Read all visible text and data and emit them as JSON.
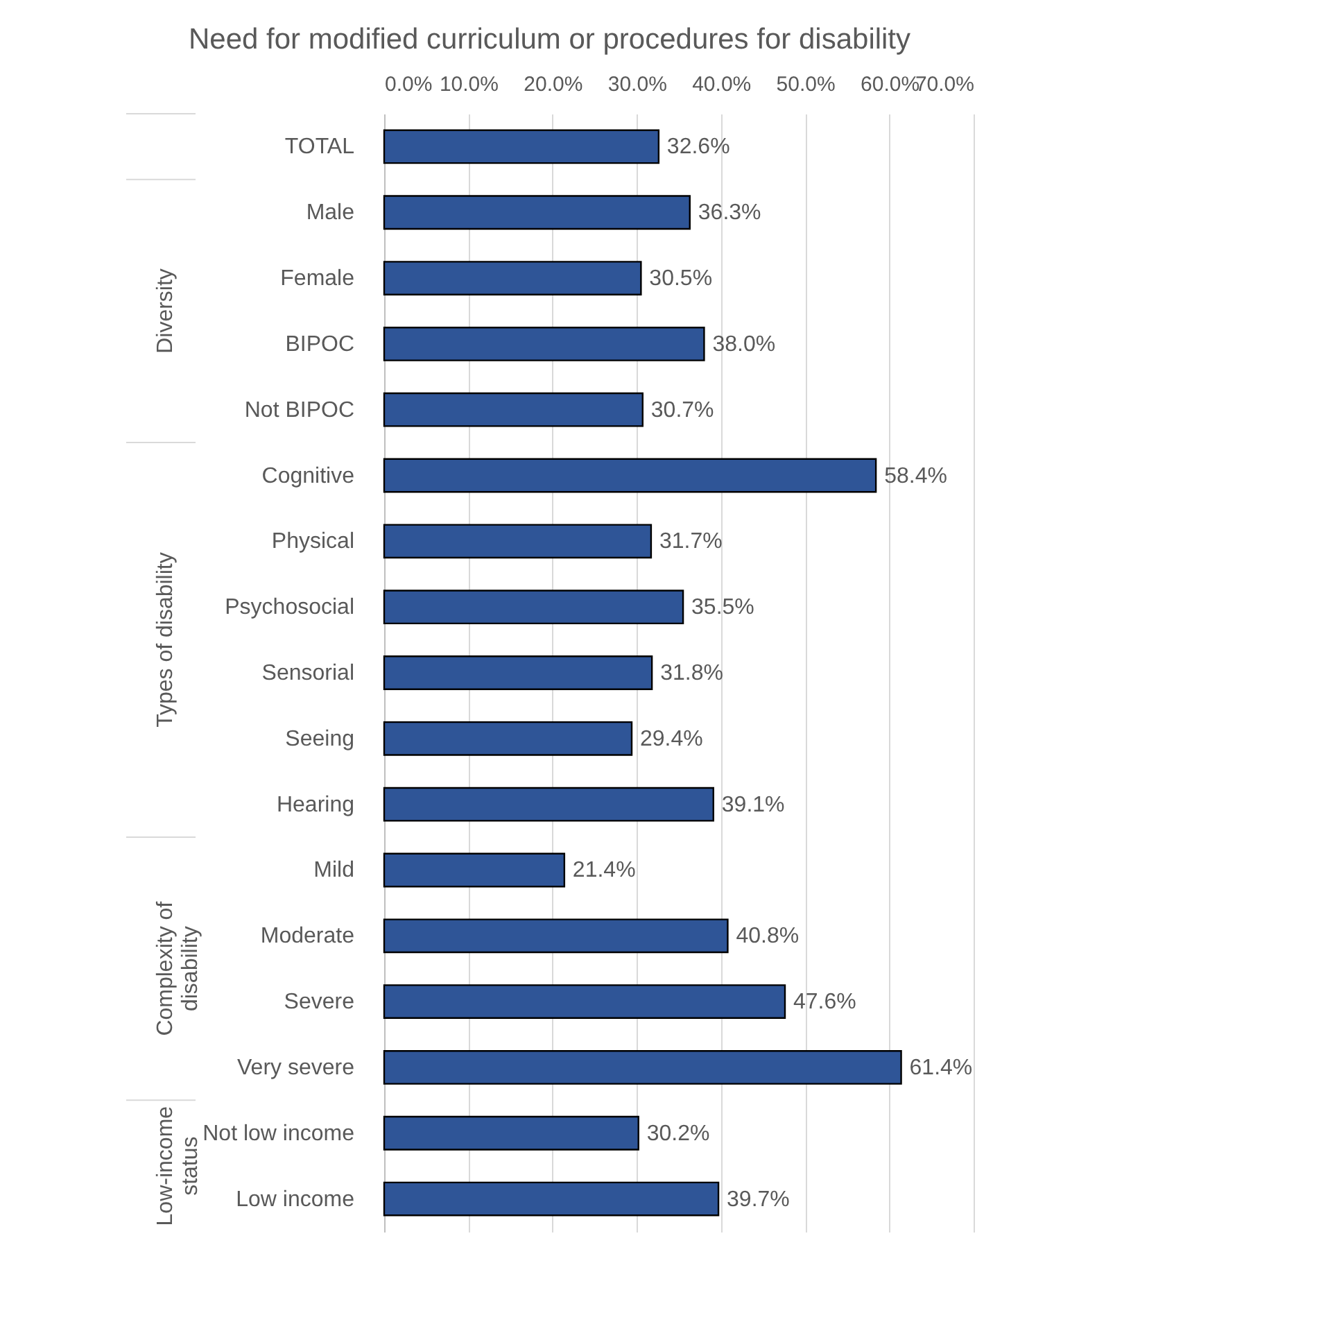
{
  "chart_data": {
    "type": "bar",
    "orientation": "horizontal",
    "title": "Need for modified curriculum or procedures for disability",
    "categories": [
      "TOTAL",
      "Male",
      "Female",
      "BIPOC",
      "Not BIPOC",
      "Cognitive",
      "Physical",
      "Psychosocial",
      "Sensorial",
      "Seeing",
      "Hearing",
      "Mild",
      "Moderate",
      "Severe",
      "Very severe",
      "Not low income",
      "Low income"
    ],
    "values": [
      32.6,
      36.3,
      30.5,
      38.0,
      30.7,
      58.4,
      31.7,
      35.5,
      31.8,
      29.4,
      39.1,
      21.4,
      40.8,
      47.6,
      61.4,
      30.2,
      39.7
    ],
    "value_labels": [
      "32.6%",
      "36.3%",
      "30.5%",
      "38.0%",
      "30.7%",
      "58.4%",
      "31.7%",
      "35.5%",
      "31.8%",
      "29.4%",
      "39.1%",
      "21.4%",
      "40.8%",
      "47.6%",
      "61.4%",
      "30.2%",
      "39.7%"
    ],
    "color": "#2f5597",
    "xlim": [
      0,
      70
    ],
    "xticks": [
      {
        "value": 0,
        "label": "0.0%"
      },
      {
        "value": 10,
        "label": "10.0%"
      },
      {
        "value": 20,
        "label": "20.0%"
      },
      {
        "value": 30,
        "label": "30.0%"
      },
      {
        "value": 40,
        "label": "40.0%"
      },
      {
        "value": 50,
        "label": "50.0%"
      },
      {
        "value": 60,
        "label": "60.0%"
      },
      {
        "value": 70,
        "label": "70.0%"
      }
    ],
    "grid": "x",
    "annotations": [
      "Diversity",
      "Types of disability",
      "Complexity of disability",
      "Low-income status"
    ]
  }
}
